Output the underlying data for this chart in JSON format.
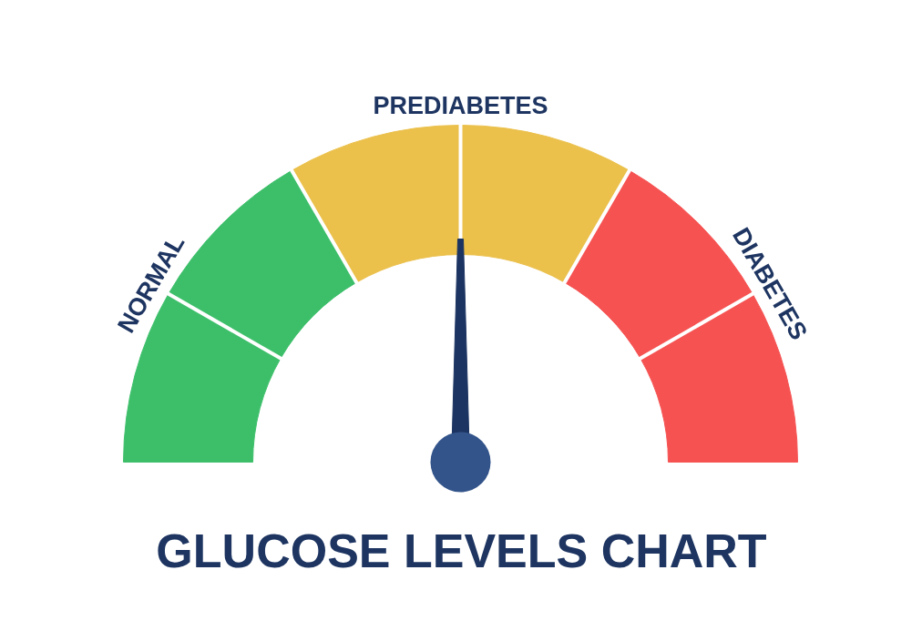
{
  "chart_data": {
    "type": "donut",
    "title": "GLUCOSE LEVELS CHART",
    "categories": [
      "NORMAL",
      "PREDIABETES",
      "DIABETES"
    ],
    "values": [
      33.3,
      33.4,
      33.3
    ],
    "colors": [
      "#3dbf6a",
      "#ebc04b",
      "#f65252"
    ],
    "needle": "PREDIABETES"
  }
}
